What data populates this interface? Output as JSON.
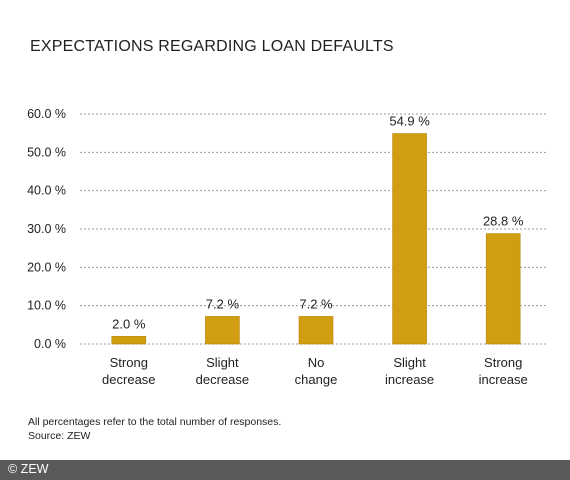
{
  "chart_data": {
    "type": "bar",
    "title": "EXPECTATIONS REGARDING LOAN DEFAULTS",
    "categories": [
      [
        "Strong",
        "decrease"
      ],
      [
        "Slight",
        "decrease"
      ],
      [
        "No",
        "change"
      ],
      [
        "Slight",
        "increase"
      ],
      [
        "Strong",
        "increase"
      ]
    ],
    "values": [
      2.0,
      7.2,
      7.2,
      54.9,
      28.8
    ],
    "value_labels": [
      "2.0 %",
      "7.2 %",
      "7.2 %",
      "54.9 %",
      "28.8 %"
    ],
    "yticks": [
      "0.0 %",
      "10.0 %",
      "20.0 %",
      "30.0 %",
      "40.0 %",
      "50.0 %",
      "60.0 %"
    ],
    "ytick_values": [
      0,
      10,
      20,
      30,
      40,
      50,
      60
    ],
    "ylim": [
      0,
      60
    ],
    "grid": true,
    "bar_color": "#d19e12",
    "bar_border": "#b8860b"
  },
  "notes": [
    "All percentages refer to the total number of responses.",
    "Source: ZEW"
  ],
  "footer": {
    "credit": "© ZEW"
  }
}
